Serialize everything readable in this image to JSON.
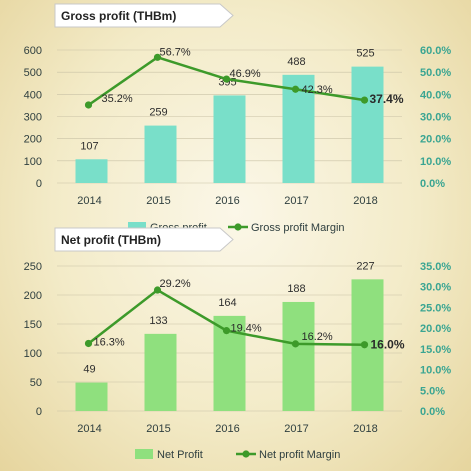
{
  "colors": {
    "gross_bar": "#79dfc9",
    "net_bar": "#8fe07e",
    "line": "#3d9a2a",
    "axis_text": "#2f3f3f",
    "right_axis_text": "#3aa592",
    "grid": "#c9c2a6",
    "banner_bg": "#ffffff",
    "banner_border": "#c8c8c8",
    "bar_label": "#2f2f2f"
  },
  "chart_data": [
    {
      "type": "bar",
      "title": "Gross profit (THBm)",
      "categories": [
        "2014",
        "2015",
        "2016",
        "2017",
        "2018"
      ],
      "series": [
        {
          "name": "Gross profit",
          "values": [
            107,
            259,
            395,
            488,
            525
          ]
        },
        {
          "name": "Gross profit Margin",
          "type": "line",
          "values": [
            35.2,
            56.7,
            46.9,
            42.3,
            37.4
          ],
          "axis": "right"
        }
      ],
      "value_labels": [
        "107",
        "259",
        "395",
        "488",
        "525"
      ],
      "line_labels": [
        "35.2%",
        "56.7%",
        "46.9%",
        "42.3%",
        "37.4%"
      ],
      "ylim": [
        0,
        600
      ],
      "y_ticks": [
        "0",
        "100",
        "200",
        "300",
        "400",
        "500",
        "600"
      ],
      "y2lim": [
        0,
        60
      ],
      "y2_ticks": [
        "0.0%",
        "10.0%",
        "20.0%",
        "30.0%",
        "40.0%",
        "50.0%",
        "60.0%"
      ],
      "grid": true,
      "legend": "bottom"
    },
    {
      "type": "bar",
      "title": "Net profit (THBm)",
      "categories": [
        "2014",
        "2015",
        "2016",
        "2017",
        "2018"
      ],
      "series": [
        {
          "name": "Net Profit",
          "values": [
            49,
            133,
            164,
            188,
            227
          ]
        },
        {
          "name": "Net profit Margin",
          "type": "line",
          "values": [
            16.3,
            29.2,
            19.4,
            16.2,
            16.0
          ],
          "axis": "right"
        }
      ],
      "value_labels": [
        "49",
        "133",
        "164",
        "188",
        "227"
      ],
      "line_labels": [
        "16.3%",
        "29.2%",
        "19.4%",
        "16.2%",
        "16.0%"
      ],
      "ylim": [
        0,
        250
      ],
      "y_ticks": [
        "0",
        "50",
        "100",
        "150",
        "200",
        "250"
      ],
      "y2lim": [
        0,
        35
      ],
      "y2_ticks": [
        "0.0%",
        "5.0%",
        "10.0%",
        "15.0%",
        "20.0%",
        "25.0%",
        "30.0%",
        "35.0%"
      ],
      "grid": true,
      "legend": "bottom"
    }
  ]
}
